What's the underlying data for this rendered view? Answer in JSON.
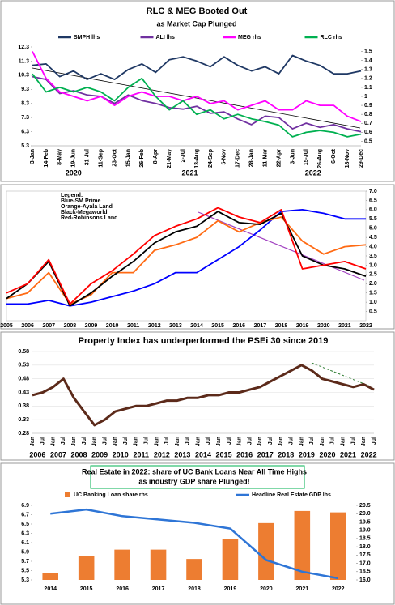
{
  "chart_data": [
    {
      "type": "line",
      "title": "RLC & MEG Booted Out",
      "subtitle": "as Market Cap Plunged",
      "categories": [
        "3-Jan",
        "14-Feb",
        "8-May",
        "19-Jun",
        "31-Jul",
        "11-Sep",
        "23-Oct",
        "15-Jan",
        "26-Feb",
        "8-Apr",
        "21-May",
        "2-Jul",
        "13-Aug",
        "24-Sep",
        "5-Nov",
        "17-Dec",
        "28-Jan",
        "11-Mar",
        "22-Apr",
        "3-Jun",
        "15-Jul",
        "26-Aug",
        "6-Oct",
        "18-Nov",
        "29-Dec"
      ],
      "x_groups": [
        "2020",
        "2021",
        "2022"
      ],
      "ylim": [
        5.3,
        12.3
      ],
      "yticks": [
        5.3,
        6.3,
        7.3,
        8.3,
        9.3,
        10.3,
        11.3,
        12.3
      ],
      "y2lim": [
        0.45,
        1.55
      ],
      "y2ticks": [
        0.5,
        0.6,
        0.7,
        0.8,
        0.9,
        1,
        1.1,
        1.2,
        1.3,
        1.4,
        1.5
      ],
      "series": [
        {
          "name": "SMPH lhs",
          "color": "#1f3864",
          "values": [
            11.0,
            11.1,
            10.2,
            10.6,
            10.0,
            10.4,
            10.0,
            10.7,
            11.1,
            10.5,
            11.4,
            11.6,
            11.3,
            10.9,
            11.6,
            11.0,
            10.6,
            10.9,
            10.4,
            11.7,
            11.3,
            11.0,
            10.4,
            10.4,
            10.6
          ]
        },
        {
          "name": "ALI lhs",
          "color": "#7030a0",
          "values": [
            10.2,
            10.0,
            9.0,
            9.2,
            8.9,
            8.8,
            8.3,
            8.9,
            8.5,
            8.3,
            8.0,
            7.9,
            8.1,
            7.6,
            7.7,
            7.2,
            6.8,
            7.4,
            7.3,
            6.5,
            6.9,
            6.6,
            6.8,
            6.5,
            6.3
          ]
        },
        {
          "name": "MEG rhs",
          "color": "#ff00ff",
          "axis": "y2",
          "values": [
            1.5,
            1.2,
            1.05,
            1.0,
            0.95,
            1.0,
            0.9,
            1.0,
            1.05,
            1.0,
            1.0,
            0.95,
            1.0,
            0.92,
            0.95,
            0.85,
            0.9,
            0.95,
            0.85,
            0.85,
            0.95,
            0.9,
            0.9,
            0.78,
            0.72
          ]
        },
        {
          "name": "RLC rhs",
          "color": "#00b050",
          "axis": "y2",
          "values": [
            1.25,
            1.05,
            1.1,
            1.05,
            1.1,
            1.05,
            0.95,
            1.1,
            1.2,
            1.0,
            0.85,
            0.95,
            0.8,
            0.85,
            0.75,
            0.8,
            0.75,
            0.72,
            0.68,
            0.55,
            0.6,
            0.62,
            0.6,
            0.55,
            0.58
          ]
        }
      ]
    },
    {
      "type": "line",
      "legend_title": "Legend:",
      "categories": [
        "2005",
        "2006",
        "2007",
        "2008",
        "2009",
        "2010",
        "2011",
        "2012",
        "2013",
        "2014",
        "2015",
        "2016",
        "2017",
        "2018",
        "2019",
        "2020",
        "2021",
        "2022"
      ],
      "y2lim": [
        0,
        7
      ],
      "y2ticks": [
        0.5,
        {
          "value": 1,
          "label": "1.0"
        },
        1.5,
        {
          "value": 2,
          "label": "2.0"
        },
        2.5,
        {
          "value": 3,
          "label": "3.0"
        },
        3.5,
        {
          "value": 4,
          "label": "4.0"
        },
        4.5,
        {
          "value": 5,
          "label": "5.0"
        },
        5.5,
        {
          "value": 6,
          "label": "6.0"
        },
        6.5,
        {
          "value": 7,
          "label": "7.0"
        }
      ],
      "series": [
        {
          "name": "Blue-SM Prime",
          "color": "#0000ff",
          "axis": "y2",
          "values": [
            0.9,
            0.9,
            1.1,
            0.8,
            1.0,
            1.3,
            1.6,
            2.0,
            2.6,
            2.6,
            3.3,
            4.0,
            4.9,
            5.9,
            6.0,
            5.8,
            5.5,
            5.5
          ]
        },
        {
          "name": "Orange-Ayala Land",
          "color": "#ff6a13",
          "axis": "y2",
          "values": [
            1.2,
            1.5,
            2.6,
            0.9,
            1.4,
            2.6,
            2.6,
            3.8,
            4.1,
            4.5,
            5.4,
            4.8,
            5.3,
            5.6,
            4.3,
            3.6,
            4.0,
            4.1
          ]
        },
        {
          "name": "Black-Megaworld",
          "color": "#000000",
          "axis": "y2",
          "values": [
            1.2,
            2.0,
            3.2,
            0.8,
            1.5,
            2.4,
            3.2,
            4.2,
            4.8,
            5.1,
            5.9,
            5.3,
            5.2,
            5.8,
            3.5,
            3.0,
            2.8,
            2.4
          ]
        },
        {
          "name": "Red-Robinsons Land",
          "color": "#ff0000",
          "axis": "y2",
          "values": [
            1.5,
            2.0,
            3.3,
            0.9,
            2.0,
            2.7,
            3.6,
            4.6,
            5.1,
            5.5,
            6.1,
            5.6,
            5.3,
            6.0,
            2.8,
            3.0,
            3.2,
            2.8
          ]
        }
      ]
    },
    {
      "type": "line",
      "title": "Property Index has underperformed the PSEi 30 since 2019",
      "categories": [
        "Jan",
        "Jul",
        "Jan",
        "Jul",
        "Jan",
        "Jul",
        "Jan",
        "Jul",
        "Jan",
        "Jul",
        "Jan",
        "Jul",
        "Jan",
        "Jul",
        "Jan",
        "Jul",
        "Jan",
        "Jul",
        "Jan",
        "Jul",
        "Jan",
        "Jul",
        "Jan",
        "Jul",
        "Jan",
        "Jul",
        "Jan",
        "Jul",
        "Jan",
        "Jul",
        "Jan",
        "Jul",
        "Jan",
        "Jul"
      ],
      "x_groups": [
        "2006",
        "2007",
        "2008",
        "2009",
        "2010",
        "2011",
        "2012",
        "2013",
        "2014",
        "2015",
        "2016",
        "2017",
        "2018",
        "2019",
        "2020",
        "2021",
        "2022"
      ],
      "ylim": [
        0.28,
        0.58
      ],
      "yticks": [
        0.28,
        0.33,
        0.38,
        0.43,
        0.48,
        0.53,
        0.58
      ],
      "grid": true,
      "series": [
        {
          "name": "Property Index / PSEi 30",
          "color": "#5c2a1a",
          "values": [
            0.42,
            0.43,
            0.45,
            0.48,
            0.41,
            0.36,
            0.31,
            0.33,
            0.36,
            0.37,
            0.38,
            0.38,
            0.39,
            0.4,
            0.4,
            0.41,
            0.41,
            0.42,
            0.42,
            0.43,
            0.43,
            0.44,
            0.45,
            0.47,
            0.49,
            0.51,
            0.53,
            0.51,
            0.48,
            0.47,
            0.46,
            0.45,
            0.46,
            0.44
          ]
        }
      ]
    },
    {
      "type": "combo",
      "title": "Real Estate in 2022: share of UC Bank Loans Near All Time Highs",
      "subtitle": "as industry GDP share Plunged!",
      "categories": [
        "2014",
        "2015",
        "2016",
        "2017",
        "2018",
        "2019",
        "2020",
        "2021",
        "2022"
      ],
      "ylim": [
        5.3,
        6.9
      ],
      "yticks": [
        5.3,
        5.5,
        5.7,
        5.9,
        6.1,
        6.3,
        6.5,
        6.7,
        6.9
      ],
      "y2lim": [
        16,
        20.5
      ],
      "y2ticks": [
        {
          "value": 16,
          "label": "16.0"
        },
        16.5,
        {
          "value": 17,
          "label": "17.0"
        },
        17.5,
        {
          "value": 18,
          "label": "18.0"
        },
        18.5,
        {
          "value": 19,
          "label": "19.0"
        },
        19.5,
        {
          "value": 20,
          "label": "20.0"
        },
        20.5
      ],
      "series": [
        {
          "name": "UC Banking Loan share rhs",
          "color": "#ed7d31",
          "mark": "bar",
          "values": [
            5.45,
            5.82,
            5.95,
            5.95,
            5.75,
            6.17,
            6.52,
            6.78,
            6.75
          ]
        },
        {
          "name": "Headline Real Estate GDP lhs",
          "color": "#2e75d6",
          "mark": "line",
          "axis": "y2",
          "values": [
            20.0,
            20.25,
            19.85,
            19.65,
            19.45,
            19.1,
            17.2,
            16.5,
            16.1
          ]
        }
      ]
    }
  ]
}
